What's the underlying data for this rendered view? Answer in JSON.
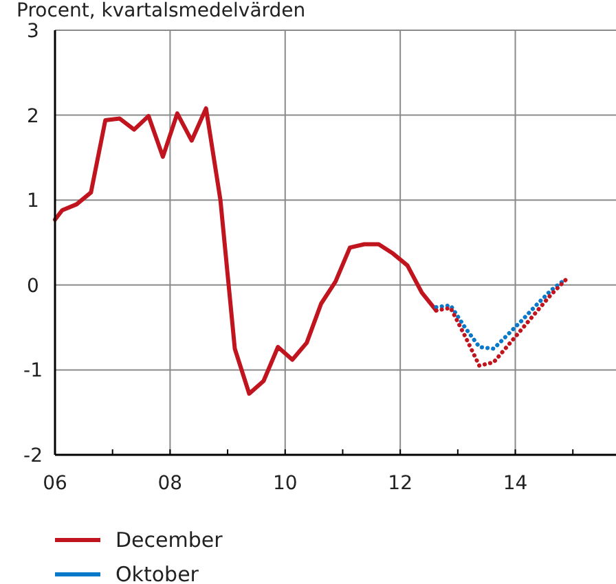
{
  "chart_data": {
    "type": "line",
    "title": "Procent, kvartalsmedelvärden",
    "xlim": [
      2006,
      2015.75
    ],
    "xticks": [
      {
        "value": 2006,
        "label": "06"
      },
      {
        "value": 2007,
        "label": null
      },
      {
        "value": 2008,
        "label": "08"
      },
      {
        "value": 2009,
        "label": null
      },
      {
        "value": 2010,
        "label": "10"
      },
      {
        "value": 2011,
        "label": null
      },
      {
        "value": 2012,
        "label": "12"
      },
      {
        "value": 2013,
        "label": null
      },
      {
        "value": 2014,
        "label": "14"
      },
      {
        "value": 2015,
        "label": null
      }
    ],
    "ylim": [
      -2,
      3
    ],
    "yticks": [
      -2,
      -1,
      0,
      1,
      2,
      3
    ],
    "grid": true,
    "legend": "bottom",
    "series": [
      {
        "name": "December",
        "color": "#c0141e",
        "line_style": "solid",
        "x": [
          2006,
          2006.125,
          2006.375,
          2006.625,
          2006.875,
          2007.125,
          2007.375,
          2007.625,
          2007.875,
          2008.125,
          2008.375,
          2008.625,
          2008.875,
          2009.125,
          2009.375,
          2009.625,
          2009.875,
          2010.125,
          2010.375,
          2010.625,
          2010.875,
          2011.125,
          2011.375,
          2011.625,
          2011.875,
          2012.125,
          2012.375,
          2012.625
        ],
        "values": [
          0.77,
          0.88,
          0.95,
          1.09,
          1.94,
          1.96,
          1.83,
          1.99,
          1.51,
          2.02,
          1.7,
          2.08,
          1.0,
          -0.75,
          -1.28,
          -1.13,
          -0.73,
          -0.88,
          -0.68,
          -0.22,
          0.04,
          0.44,
          0.48,
          0.48,
          0.37,
          0.23,
          -0.09,
          -0.3
        ]
      },
      {
        "name": "Oktober",
        "color": "#0a78c8",
        "line_style": "dotted",
        "x": [
          2012.625,
          2012.875,
          2013.125,
          2013.375,
          2013.625,
          2013.875,
          2014.125,
          2014.375,
          2014.625,
          2014.875
        ],
        "values": [
          -0.26,
          -0.24,
          -0.5,
          -0.73,
          -0.75,
          -0.58,
          -0.41,
          -0.23,
          -0.06,
          0.07
        ]
      },
      {
        "color": "#c0141e",
        "line_style": "dotted",
        "x": [
          2012.625,
          2012.875,
          2013.125,
          2013.375,
          2013.625,
          2013.875,
          2014.125,
          2014.375,
          2014.625,
          2014.875
        ],
        "values": [
          -0.3,
          -0.27,
          -0.6,
          -0.95,
          -0.91,
          -0.71,
          -0.51,
          -0.31,
          -0.11,
          0.06
        ]
      }
    ]
  }
}
